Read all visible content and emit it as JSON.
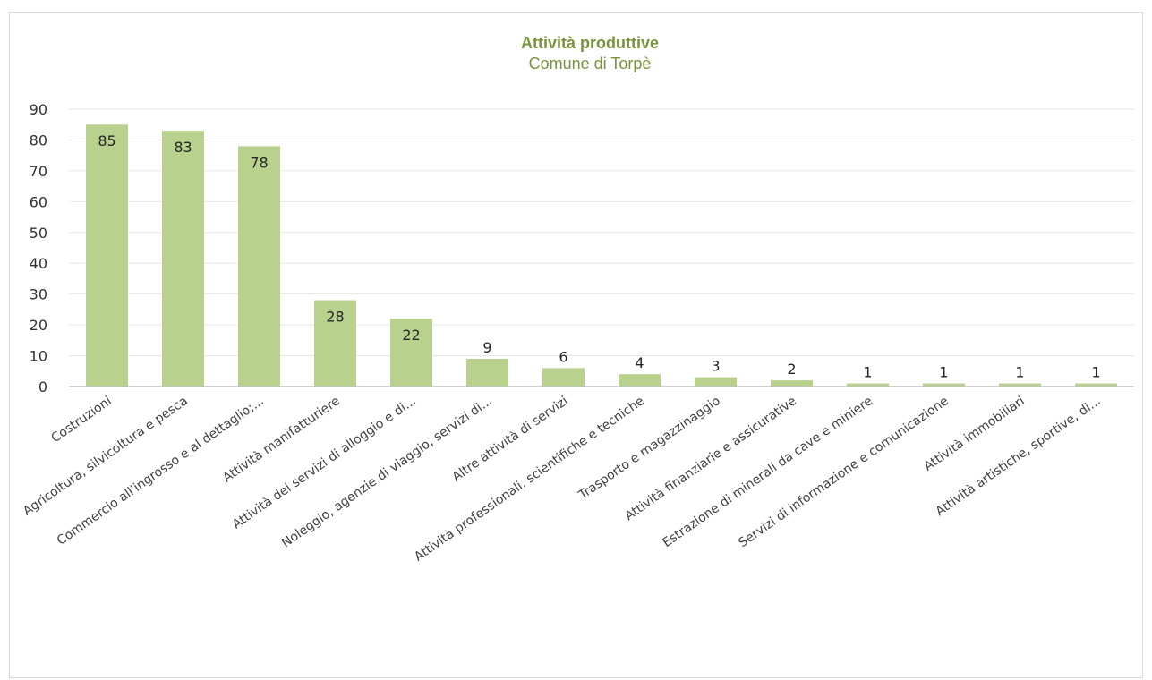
{
  "colors": {
    "bar": "#b8d28e",
    "title": "#77933c",
    "grid": "#e6e6e6",
    "axis": "#bfbfbf"
  },
  "chart_data": {
    "type": "bar",
    "title": "Attività produttive",
    "subtitle": "Comune di Torpè",
    "xlabel": "",
    "ylabel": "",
    "ylim": [
      0,
      90
    ],
    "yticks": [
      0,
      10,
      20,
      30,
      40,
      50,
      60,
      70,
      80,
      90
    ],
    "grid": true,
    "legend": "none",
    "categories": [
      "Costruzioni",
      "Agricoltura, silvicoltura e pesca",
      "Commercio all'ingrosso e al dettaglio;...",
      "Attività manifatturiere",
      "Attività dei servizi di alloggio e di...",
      "Noleggio, agenzie di viaggio, servizi di...",
      "Altre attività di servizi",
      "Attività professionali, scientifiche e tecniche",
      "Trasporto e magazzinaggio",
      "Attività finanziarie e assicurative",
      "Estrazione di minerali da cave e miniere",
      "Servizi di informazione e comunicazione",
      "Attività immobiliari",
      "Attività artistiche, sportive, di..."
    ],
    "values": [
      85,
      83,
      78,
      28,
      22,
      9,
      6,
      4,
      3,
      2,
      1,
      1,
      1,
      1
    ]
  }
}
